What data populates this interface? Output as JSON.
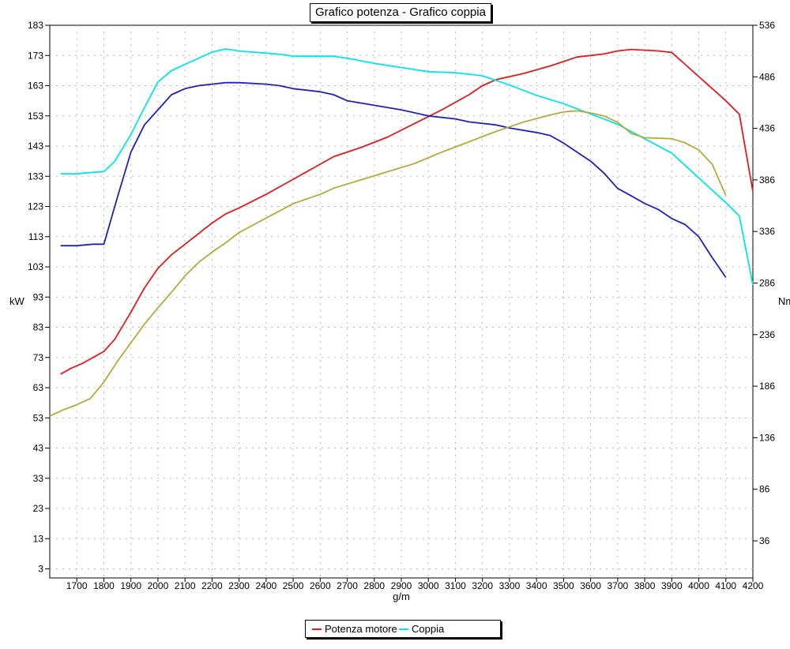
{
  "title": "Grafico potenza - Grafico coppia",
  "chart_data": {
    "type": "line",
    "title": "Grafico potenza - Grafico coppia",
    "xlabel": "g/m",
    "ylabel_left": "kW",
    "ylabel_right": "Nm",
    "xlim": [
      1600,
      4200
    ],
    "ylim_left": [
      0,
      183
    ],
    "ylim_right": [
      0,
      536
    ],
    "x_ticks": [
      1700,
      1800,
      1900,
      2000,
      2100,
      2200,
      2300,
      2400,
      2500,
      2600,
      2700,
      2800,
      2900,
      3000,
      3100,
      3200,
      3300,
      3400,
      3500,
      3600,
      3700,
      3800,
      3900,
      4000,
      4100,
      4200
    ],
    "y_ticks_left": [
      3,
      13,
      23,
      33,
      43,
      53,
      63,
      73,
      83,
      93,
      103,
      113,
      123,
      133,
      143,
      153,
      163,
      173,
      183
    ],
    "y_ticks_right": [
      36,
      86,
      136,
      186,
      236,
      286,
      336,
      386,
      436,
      486,
      536
    ],
    "grid": true,
    "legend_position": "bottom-center",
    "series": [
      {
        "name": "Potenza motore",
        "color": "#e31a1c",
        "axis": "left",
        "points": [
          [
            1640,
            67.5
          ],
          [
            1680,
            69.5
          ],
          [
            1720,
            71
          ],
          [
            1760,
            73
          ],
          [
            1800,
            75
          ],
          [
            1840,
            79
          ],
          [
            1900,
            88
          ],
          [
            1950,
            96
          ],
          [
            2000,
            102.5
          ],
          [
            2050,
            107
          ],
          [
            2100,
            110.5
          ],
          [
            2150,
            114
          ],
          [
            2200,
            117.5
          ],
          [
            2250,
            120.5
          ],
          [
            2300,
            122.5
          ],
          [
            2400,
            127
          ],
          [
            2450,
            129.5
          ],
          [
            2500,
            132
          ],
          [
            2600,
            137
          ],
          [
            2650,
            139.5
          ],
          [
            2750,
            142.5
          ],
          [
            2850,
            146
          ],
          [
            2950,
            150.5
          ],
          [
            3050,
            155
          ],
          [
            3150,
            160
          ],
          [
            3200,
            163
          ],
          [
            3250,
            165
          ],
          [
            3350,
            167
          ],
          [
            3450,
            169.5
          ],
          [
            3500,
            171
          ],
          [
            3550,
            172.5
          ],
          [
            3600,
            173
          ],
          [
            3650,
            173.5
          ],
          [
            3700,
            174.5
          ],
          [
            3750,
            175
          ],
          [
            3850,
            174.5
          ],
          [
            3900,
            174
          ],
          [
            4000,
            166
          ],
          [
            4100,
            158
          ],
          [
            4150,
            153.5
          ],
          [
            4200,
            128
          ]
        ]
      },
      {
        "name": "Coppia",
        "color": "#00e5ee",
        "axis": "right",
        "points": [
          [
            1640,
            392
          ],
          [
            1700,
            392
          ],
          [
            1740,
            393
          ],
          [
            1800,
            394
          ],
          [
            1840,
            404
          ],
          [
            1900,
            430
          ],
          [
            1950,
            456
          ],
          [
            2000,
            481
          ],
          [
            2050,
            492
          ],
          [
            2100,
            498
          ],
          [
            2150,
            504
          ],
          [
            2200,
            510
          ],
          [
            2250,
            513
          ],
          [
            2300,
            511
          ],
          [
            2400,
            509
          ],
          [
            2450,
            508
          ],
          [
            2500,
            506
          ],
          [
            2600,
            506
          ],
          [
            2650,
            506
          ],
          [
            2700,
            504
          ],
          [
            2800,
            499
          ],
          [
            2900,
            495
          ],
          [
            3000,
            491
          ],
          [
            3100,
            490
          ],
          [
            3200,
            487
          ],
          [
            3300,
            478
          ],
          [
            3400,
            468
          ],
          [
            3500,
            460
          ],
          [
            3600,
            450
          ],
          [
            3700,
            440
          ],
          [
            3800,
            426
          ],
          [
            3900,
            412
          ],
          [
            4000,
            388
          ],
          [
            4100,
            364
          ],
          [
            4150,
            351
          ],
          [
            4200,
            284
          ]
        ]
      },
      {
        "name": "",
        "color": "#2020c0",
        "axis": "left",
        "points": [
          [
            1640,
            110
          ],
          [
            1700,
            110
          ],
          [
            1760,
            110.5
          ],
          [
            1800,
            110.5
          ],
          [
            1850,
            126
          ],
          [
            1900,
            141
          ],
          [
            1950,
            150
          ],
          [
            2000,
            155
          ],
          [
            2050,
            160
          ],
          [
            2100,
            162
          ],
          [
            2150,
            163
          ],
          [
            2200,
            163.5
          ],
          [
            2250,
            164
          ],
          [
            2300,
            164
          ],
          [
            2400,
            163.5
          ],
          [
            2450,
            163
          ],
          [
            2500,
            162
          ],
          [
            2600,
            161
          ],
          [
            2650,
            160
          ],
          [
            2700,
            158
          ],
          [
            2800,
            156.5
          ],
          [
            2900,
            155
          ],
          [
            3000,
            153
          ],
          [
            3100,
            152
          ],
          [
            3150,
            151
          ],
          [
            3250,
            150
          ],
          [
            3300,
            149
          ],
          [
            3400,
            147.5
          ],
          [
            3450,
            146.5
          ],
          [
            3500,
            144
          ],
          [
            3550,
            141
          ],
          [
            3600,
            138
          ],
          [
            3650,
            134
          ],
          [
            3700,
            129
          ],
          [
            3750,
            126.5
          ],
          [
            3800,
            124
          ],
          [
            3850,
            122
          ],
          [
            3900,
            119
          ],
          [
            3950,
            117
          ],
          [
            4000,
            113
          ],
          [
            4050,
            106
          ],
          [
            4100,
            99.5
          ]
        ]
      },
      {
        "name": "",
        "color": "#b5aa3c",
        "axis": "right",
        "points": [
          [
            1600,
            157
          ],
          [
            1650,
            163
          ],
          [
            1700,
            168
          ],
          [
            1750,
            174
          ],
          [
            1800,
            190
          ],
          [
            1850,
            210
          ],
          [
            1900,
            228
          ],
          [
            1950,
            246
          ],
          [
            2000,
            262
          ],
          [
            2050,
            277
          ],
          [
            2100,
            293
          ],
          [
            2150,
            306
          ],
          [
            2200,
            316
          ],
          [
            2250,
            325
          ],
          [
            2300,
            335
          ],
          [
            2400,
            349
          ],
          [
            2450,
            356
          ],
          [
            2500,
            363
          ],
          [
            2600,
            372
          ],
          [
            2650,
            378
          ],
          [
            2750,
            386
          ],
          [
            2850,
            394
          ],
          [
            2950,
            402
          ],
          [
            3050,
            413
          ],
          [
            3150,
            423
          ],
          [
            3250,
            433
          ],
          [
            3350,
            442
          ],
          [
            3450,
            449
          ],
          [
            3500,
            452
          ],
          [
            3550,
            453
          ],
          [
            3600,
            451
          ],
          [
            3650,
            448
          ],
          [
            3700,
            442
          ],
          [
            3750,
            431
          ],
          [
            3800,
            427
          ],
          [
            3900,
            426
          ],
          [
            3950,
            422
          ],
          [
            4000,
            415
          ],
          [
            4050,
            401
          ],
          [
            4100,
            371
          ]
        ]
      }
    ]
  }
}
